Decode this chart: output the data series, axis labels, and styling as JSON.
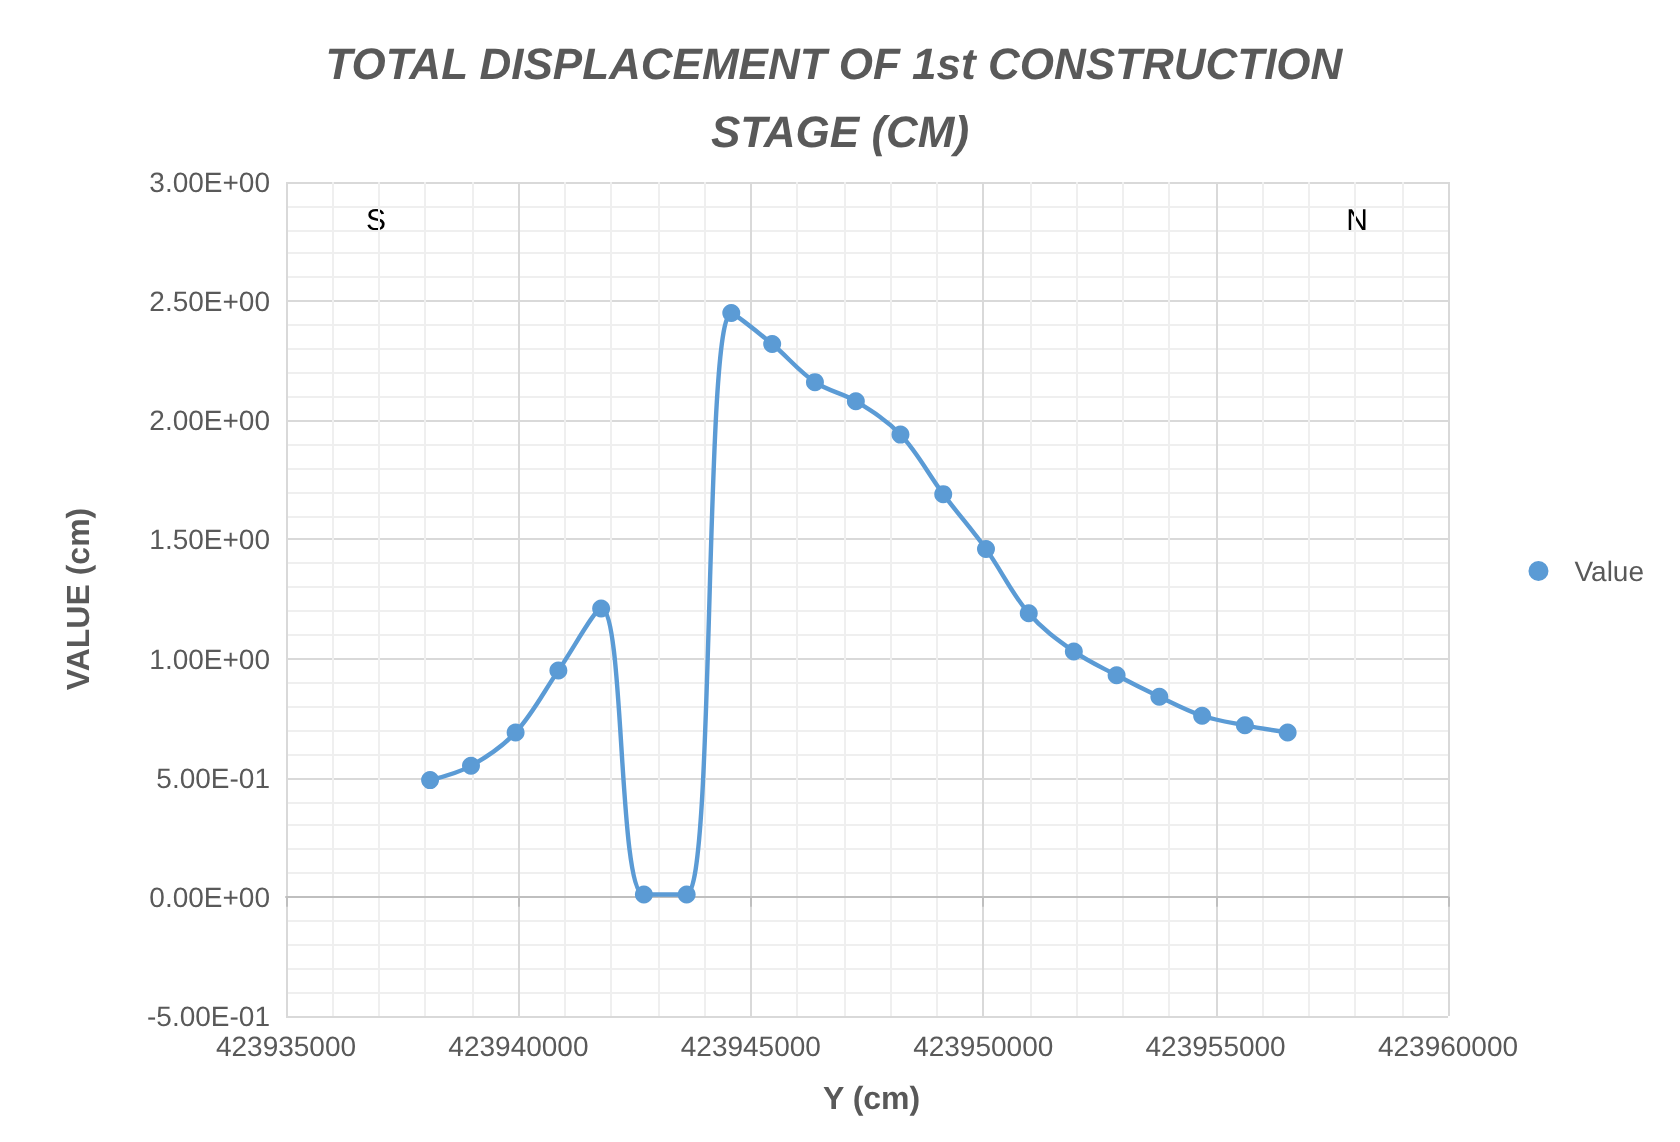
{
  "chart_data": {
    "type": "line",
    "title": "TOTAL DISPLACEMENT OF 1st CONSTRUCTION STAGE (CM)",
    "xlabel": "Y (cm)",
    "ylabel": "VALUE (cm)",
    "annotations": [
      "S",
      "N"
    ],
    "x": [
      423938100,
      423938980,
      423939940,
      423940860,
      423941780,
      423942700,
      423943620,
      423944580,
      423945460,
      423946380,
      423947260,
      423948220,
      423949140,
      423950060,
      423950980,
      423951950,
      423952870,
      423953790,
      423954710,
      423955630,
      423956550
    ],
    "series": [
      {
        "name": "Value",
        "color": "#5b9bd5",
        "values": [
          0.49,
          0.55,
          0.69,
          0.95,
          1.21,
          0.01,
          0.01,
          2.45,
          2.32,
          2.16,
          2.08,
          1.94,
          1.69,
          1.46,
          1.19,
          1.03,
          0.93,
          0.84,
          0.76,
          0.72,
          0.69
        ]
      }
    ],
    "xlim": [
      423935000,
      423960000
    ],
    "xticks": [
      423935000,
      423940000,
      423945000,
      423950000,
      423955000,
      423960000
    ],
    "ylim": [
      -0.5,
      3
    ],
    "yticks": [
      {
        "value": -0.5,
        "label": "-5.00E-01"
      },
      {
        "value": 0,
        "label": "0.00E+00"
      },
      {
        "value": 0.5,
        "label": "5.00E-01"
      },
      {
        "value": 1,
        "label": "1.00E+00"
      },
      {
        "value": 1.5,
        "label": "1.50E+00"
      },
      {
        "value": 2,
        "label": "2.00E+00"
      },
      {
        "value": 2.5,
        "label": "2.50E+00"
      },
      {
        "value": 3,
        "label": "3.00E+00"
      }
    ],
    "grid": true,
    "legend": "right",
    "marker": "circle",
    "line_style": "solid"
  }
}
